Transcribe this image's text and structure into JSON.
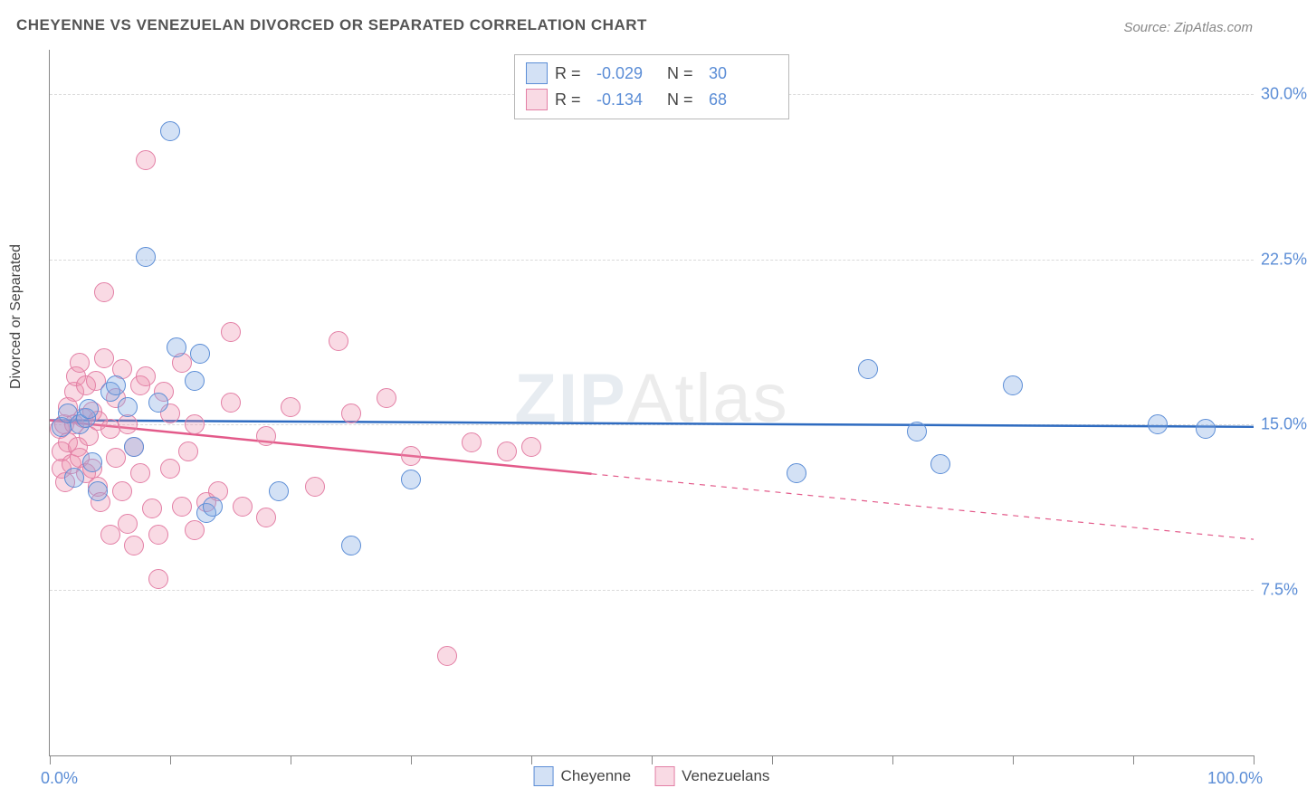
{
  "title": "CHEYENNE VS VENEZUELAN DIVORCED OR SEPARATED CORRELATION CHART",
  "source": "Source: ZipAtlas.com",
  "watermark_a": "ZIP",
  "watermark_b": "Atlas",
  "y_axis_title": "Divorced or Separated",
  "x_axis": {
    "min_label": "0.0%",
    "max_label": "100.0%"
  },
  "chart": {
    "type": "scatter",
    "xlim": [
      0,
      100
    ],
    "ylim": [
      0,
      32
    ],
    "y_ticks": [
      7.5,
      15.0,
      22.5,
      30.0
    ],
    "y_tick_labels": [
      "7.5%",
      "15.0%",
      "22.5%",
      "30.0%"
    ],
    "x_tick_positions": [
      0,
      10,
      20,
      30,
      40,
      50,
      60,
      70,
      80,
      90,
      100
    ],
    "background_color": "#ffffff",
    "grid_color": "#dadada",
    "series": [
      {
        "name": "Cheyenne",
        "fill": "rgba(130,170,225,0.35)",
        "stroke": "#5b8dd6",
        "r_label": "R =",
        "r_value": "-0.029",
        "n_label": "N =",
        "n_value": "30",
        "trend": {
          "x1": 0,
          "y1": 15.2,
          "x2": 100,
          "y2": 14.9,
          "solid_until": 100,
          "stroke": "#2e6bc0",
          "width": 2.5
        },
        "points": [
          [
            1,
            14.9
          ],
          [
            1.5,
            15.5
          ],
          [
            2,
            12.6
          ],
          [
            2.5,
            15.0
          ],
          [
            3,
            15.3
          ],
          [
            3.2,
            15.7
          ],
          [
            3.5,
            13.3
          ],
          [
            4,
            12.0
          ],
          [
            5,
            16.5
          ],
          [
            5.5,
            16.8
          ],
          [
            6.5,
            15.8
          ],
          [
            7,
            14.0
          ],
          [
            8,
            22.6
          ],
          [
            9,
            16.0
          ],
          [
            10,
            28.3
          ],
          [
            10.5,
            18.5
          ],
          [
            12,
            17.0
          ],
          [
            12.5,
            18.2
          ],
          [
            13,
            11.0
          ],
          [
            13.5,
            11.3
          ],
          [
            19,
            12.0
          ],
          [
            25,
            9.5
          ],
          [
            30,
            12.5
          ],
          [
            62,
            12.8
          ],
          [
            68,
            17.5
          ],
          [
            72,
            14.7
          ],
          [
            74,
            13.2
          ],
          [
            80,
            16.8
          ],
          [
            92,
            15.0
          ],
          [
            96,
            14.8
          ]
        ]
      },
      {
        "name": "Venezuelans",
        "fill": "rgba(235,140,170,0.32)",
        "stroke": "#e37fa5",
        "r_label": "R =",
        "r_value": "-0.134",
        "n_label": "N =",
        "n_value": "68",
        "trend": {
          "x1": 0,
          "y1": 15.2,
          "x2": 100,
          "y2": 9.8,
          "solid_until": 45,
          "stroke": "#e35a8a",
          "width": 2.5
        },
        "points": [
          [
            0.8,
            14.8
          ],
          [
            1,
            13.0
          ],
          [
            1,
            13.8
          ],
          [
            1.2,
            15.0
          ],
          [
            1.3,
            12.4
          ],
          [
            1.5,
            14.2
          ],
          [
            1.5,
            15.8
          ],
          [
            1.8,
            13.2
          ],
          [
            2,
            16.5
          ],
          [
            2,
            15.0
          ],
          [
            2.2,
            17.2
          ],
          [
            2.3,
            14.0
          ],
          [
            2.5,
            13.5
          ],
          [
            2.5,
            17.8
          ],
          [
            2.8,
            15.3
          ],
          [
            3,
            12.8
          ],
          [
            3,
            16.8
          ],
          [
            3.2,
            14.5
          ],
          [
            3.5,
            13.0
          ],
          [
            3.5,
            15.6
          ],
          [
            3.8,
            17.0
          ],
          [
            4,
            12.2
          ],
          [
            4,
            15.2
          ],
          [
            4.2,
            11.5
          ],
          [
            4.5,
            18.0
          ],
          [
            4.5,
            21.0
          ],
          [
            5,
            14.8
          ],
          [
            5,
            10.0
          ],
          [
            5.5,
            13.5
          ],
          [
            5.5,
            16.2
          ],
          [
            6,
            12.0
          ],
          [
            6,
            17.5
          ],
          [
            6.5,
            10.5
          ],
          [
            6.5,
            15.0
          ],
          [
            7,
            14.0
          ],
          [
            7,
            9.5
          ],
          [
            7.5,
            12.8
          ],
          [
            7.5,
            16.8
          ],
          [
            8,
            27.0
          ],
          [
            8,
            17.2
          ],
          [
            8.5,
            11.2
          ],
          [
            9,
            10.0
          ],
          [
            9,
            8.0
          ],
          [
            9.5,
            16.5
          ],
          [
            10,
            15.5
          ],
          [
            10,
            13.0
          ],
          [
            11,
            17.8
          ],
          [
            11,
            11.3
          ],
          [
            11.5,
            13.8
          ],
          [
            12,
            15.0
          ],
          [
            12,
            10.2
          ],
          [
            13,
            11.5
          ],
          [
            14,
            12.0
          ],
          [
            15,
            16.0
          ],
          [
            15,
            19.2
          ],
          [
            16,
            11.3
          ],
          [
            18,
            14.5
          ],
          [
            18,
            10.8
          ],
          [
            20,
            15.8
          ],
          [
            22,
            12.2
          ],
          [
            24,
            18.8
          ],
          [
            25,
            15.5
          ],
          [
            28,
            16.2
          ],
          [
            30,
            13.6
          ],
          [
            33,
            4.5
          ],
          [
            35,
            14.2
          ],
          [
            38,
            13.8
          ],
          [
            40,
            14.0
          ]
        ]
      }
    ]
  }
}
